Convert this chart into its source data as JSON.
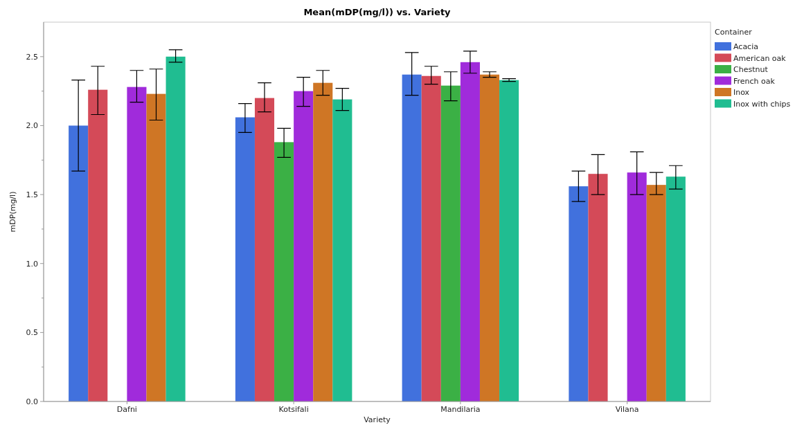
{
  "chart_data": {
    "type": "bar",
    "title": "Mean(mDP(mg/l)) vs. Variety",
    "xlabel": "Variety",
    "ylabel": "mDP(mg/l)",
    "legend_title": "Container",
    "legend": "top right",
    "categories": [
      "Dafni",
      "Kotsifali",
      "Mandilaria",
      "Vilana"
    ],
    "ylim": [
      0,
      2.75
    ],
    "yticks": [
      {
        "value": 0,
        "label": "0.0"
      },
      {
        "value": 0.25,
        "label": null
      },
      {
        "value": 0.5,
        "label": "0.5"
      },
      {
        "value": 0.75,
        "label": null
      },
      {
        "value": 1,
        "label": "1.0"
      },
      {
        "value": 1.25,
        "label": null
      },
      {
        "value": 1.5,
        "label": "1.5"
      },
      {
        "value": 1.75,
        "label": null
      },
      {
        "value": 2,
        "label": "2.0"
      },
      {
        "value": 2.25,
        "label": null
      },
      {
        "value": 2.5,
        "label": "2.5"
      }
    ],
    "series": [
      {
        "name": "Acacia",
        "color": "#4171dd",
        "values": [
          2.0,
          2.06,
          2.37,
          1.56
        ],
        "errors": [
          [
            1.67,
            2.33
          ],
          [
            1.95,
            2.16
          ],
          [
            2.22,
            2.53
          ],
          [
            1.45,
            1.67
          ]
        ]
      },
      {
        "name": "American oak",
        "color": "#d44a58",
        "values": [
          2.26,
          2.2,
          2.36,
          1.65
        ],
        "errors": [
          [
            2.08,
            2.43
          ],
          [
            2.1,
            2.31
          ],
          [
            2.3,
            2.43
          ],
          [
            1.5,
            1.79
          ]
        ]
      },
      {
        "name": "Chestnut",
        "color": "#3bb045",
        "values": [
          null,
          1.88,
          2.29,
          null
        ],
        "errors": [
          null,
          [
            1.77,
            1.98
          ],
          [
            2.18,
            2.39
          ],
          null
        ]
      },
      {
        "name": "French oak",
        "color": "#a02bdb",
        "values": [
          2.28,
          2.25,
          2.46,
          1.66
        ],
        "errors": [
          [
            2.17,
            2.4
          ],
          [
            2.14,
            2.35
          ],
          [
            2.38,
            2.54
          ],
          [
            1.5,
            1.81
          ]
        ]
      },
      {
        "name": "Inox",
        "color": "#cf7625",
        "values": [
          2.23,
          2.31,
          2.37,
          1.57
        ],
        "errors": [
          [
            2.04,
            2.41
          ],
          [
            2.22,
            2.4
          ],
          [
            2.35,
            2.39
          ],
          [
            1.5,
            1.66
          ]
        ]
      },
      {
        "name": "Inox with chips",
        "color": "#20bd91",
        "values": [
          2.5,
          2.19,
          2.33,
          1.63
        ],
        "errors": [
          [
            2.46,
            2.55
          ],
          [
            2.11,
            2.27
          ],
          [
            2.32,
            2.34
          ],
          [
            1.54,
            1.71
          ]
        ]
      }
    ]
  }
}
